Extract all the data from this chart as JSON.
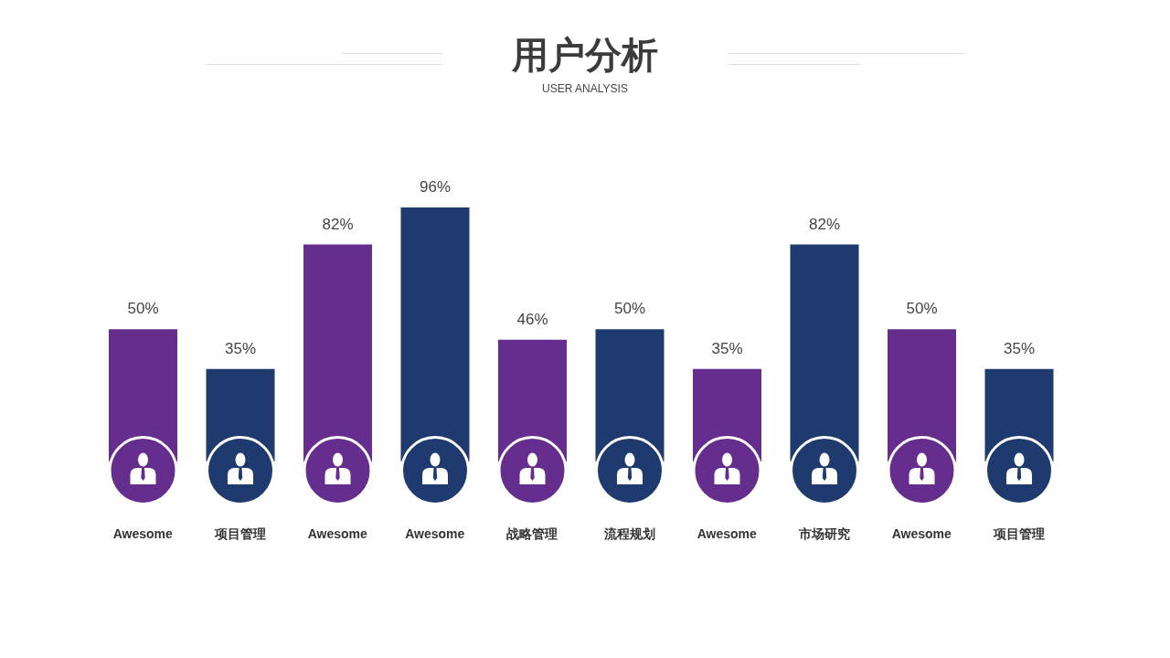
{
  "chart_data": {
    "type": "bar",
    "title": "用户分析",
    "subtitle": "USER ANALYSIS",
    "categories": [
      "Awesome",
      "项目管理",
      "Awesome",
      "Awesome",
      "战略管理",
      "流程规划",
      "Awesome",
      "市场研究",
      "Awesome",
      "项目管理"
    ],
    "values": [
      50,
      35,
      82,
      96,
      46,
      50,
      35,
      82,
      50,
      35
    ],
    "value_labels": [
      "50%",
      "35%",
      "82%",
      "96%",
      "46%",
      "50%",
      "35%",
      "82%",
      "50%",
      "35%"
    ],
    "colors": [
      "#652d8e",
      "#1f3a6f",
      "#652d8e",
      "#1f3a6f",
      "#652d8e",
      "#1f3a6f",
      "#652d8e",
      "#1f3a6f",
      "#652d8e",
      "#1f3a6f"
    ],
    "tick_labels": "x"
  }
}
